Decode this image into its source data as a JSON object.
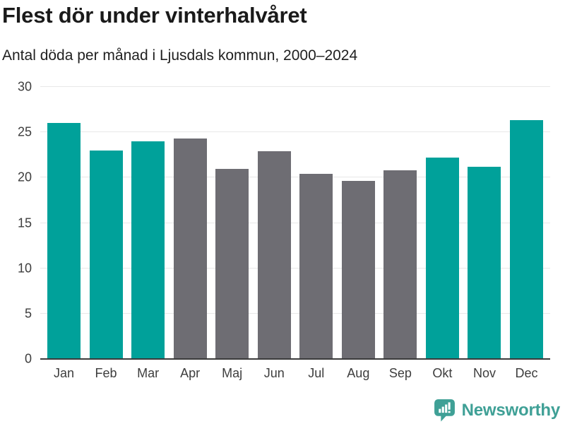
{
  "header": {
    "title": "Flest dör under vinterhalvåret",
    "subtitle": "Antal döda per månad i Ljusdals kommun, 2000–2024"
  },
  "chart_data": {
    "type": "bar",
    "title": "Flest dör under vinterhalvåret",
    "subtitle": "Antal döda per månad i Ljusdals kommun, 2000–2024",
    "categories": [
      "Jan",
      "Feb",
      "Mar",
      "Apr",
      "Maj",
      "Jun",
      "Jul",
      "Aug",
      "Sep",
      "Okt",
      "Nov",
      "Dec"
    ],
    "values": [
      26.0,
      23.0,
      24.0,
      24.3,
      21.0,
      22.9,
      20.4,
      19.6,
      20.8,
      22.2,
      21.2,
      26.3
    ],
    "bar_color_keys": [
      "winter",
      "winter",
      "winter",
      "summer",
      "summer",
      "summer",
      "summer",
      "summer",
      "summer",
      "winter",
      "winter",
      "winter"
    ],
    "colors": {
      "winter": "#00A19A",
      "summer": "#6E6D73"
    },
    "xlabel": "",
    "ylabel": "",
    "ylim": [
      0,
      30
    ],
    "y_ticks": [
      0,
      5,
      10,
      15,
      20,
      25,
      30
    ],
    "grid": "horizontal-only",
    "grid_color": "#E8E8E8",
    "axis_color": "#3B3B3B",
    "tick_label_color": "#3D3D3D",
    "legend": "none"
  },
  "footer": {
    "brand": "Newsworthy",
    "brand_color": "#3FA096",
    "logo_icon": "newsworthy-speech-bubble-bar-chart-icon"
  }
}
